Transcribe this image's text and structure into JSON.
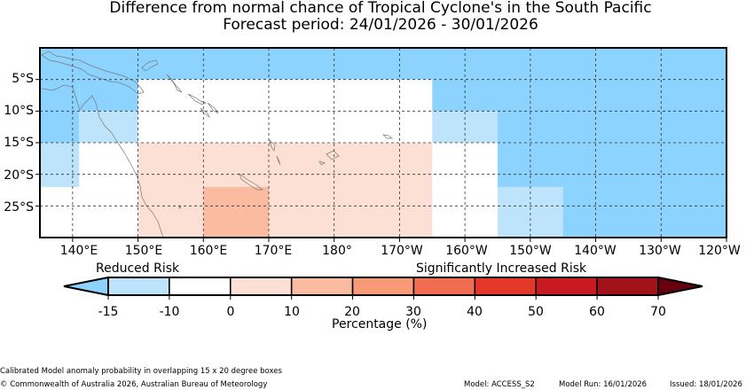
{
  "title_line1": "Difference from normal chance of Tropical Cyclone's in the South Pacific",
  "title_line2": "Forecast period: 24/01/2026 - 30/01/2026",
  "map": {
    "lat_labels": [
      "5°S",
      "10°S",
      "15°S",
      "20°S",
      "25°S"
    ],
    "lon_labels": [
      "140°E",
      "150°E",
      "160°E",
      "170°E",
      "180°",
      "170°W",
      "160°W",
      "150°W",
      "140°W",
      "130°W",
      "120°W"
    ],
    "lon_range": [
      135,
      240
    ],
    "lat_range": [
      0,
      -30
    ],
    "cells": [
      {
        "lon": [
          135,
          240
        ],
        "lat": [
          0,
          -5
        ],
        "category": "-15"
      },
      {
        "lon": [
          135,
          141
        ],
        "lat": [
          -5,
          -15
        ],
        "category": "-15"
      },
      {
        "lon": [
          141,
          150
        ],
        "lat": [
          -5,
          -10
        ],
        "category": "-15"
      },
      {
        "lon": [
          141,
          150
        ],
        "lat": [
          -10,
          -15
        ],
        "category": "-10"
      },
      {
        "lon": [
          135,
          141
        ],
        "lat": [
          -15,
          -22
        ],
        "category": "-10"
      },
      {
        "lon": [
          150,
          195
        ],
        "lat": [
          -5,
          -15
        ],
        "category": "0"
      },
      {
        "lon": [
          195,
          205
        ],
        "lat": [
          -5,
          -10
        ],
        "category": "-15"
      },
      {
        "lon": [
          195,
          205
        ],
        "lat": [
          -10,
          -15
        ],
        "category": "-10"
      },
      {
        "lon": [
          150,
          195
        ],
        "lat": [
          -15,
          -30
        ],
        "category": "0-10"
      },
      {
        "lon": [
          160,
          170
        ],
        "lat": [
          -22,
          -30
        ],
        "category": "10-20"
      },
      {
        "lon": [
          205,
          240
        ],
        "lat": [
          -5,
          -22
        ],
        "category": "-15"
      },
      {
        "lon": [
          205,
          215
        ],
        "lat": [
          -22,
          -30
        ],
        "category": "-10"
      },
      {
        "lon": [
          215,
          240
        ],
        "lat": [
          -22,
          -30
        ],
        "category": "-15"
      }
    ]
  },
  "colorbar": {
    "label_left": "Reduced Risk",
    "label_right": "Significantly Increased Risk",
    "tick_labels": [
      "-15",
      "-10",
      "0",
      "10",
      "20",
      "30",
      "40",
      "50",
      "60",
      "70"
    ],
    "colors": {
      "under": "#8dd3ff",
      "-15 to -10": "#bde4fb",
      "-10 to 0": "#ffffff",
      "0 to 10": "#fde0d5",
      "10 to 20": "#fbbba0",
      "20 to 30": "#f79a78",
      "30 to 40": "#f26c51",
      "40 to 50": "#e53729",
      "50 to 60": "#c81b21",
      "60 to 70": "#a11219",
      "over": "#67000d"
    },
    "xlabel": "Percentage (%)"
  },
  "footer": {
    "note": "Calibrated Model anomaly probability in overlapping 15 x 20 degree boxes",
    "copyright": "© Commonwealth of Australia 2026, Australian Bureau of Meteorology",
    "model": "Model: ACCESS_S2",
    "model_run": "Model Run: 16/01/2026",
    "issued": "Issued: 18/01/2026"
  }
}
